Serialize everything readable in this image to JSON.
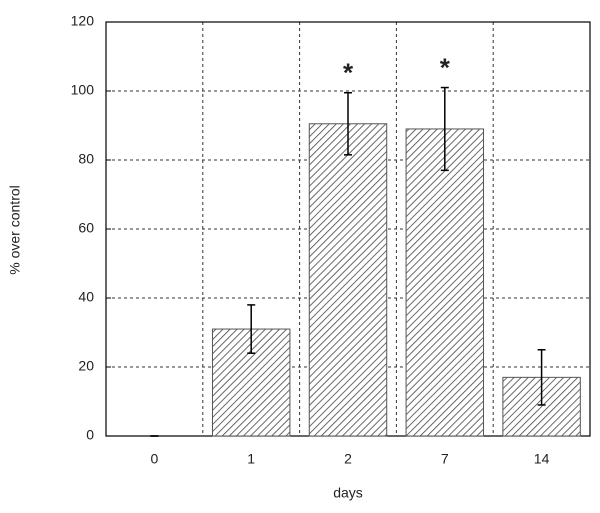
{
  "chart_data": {
    "type": "bar",
    "categories": [
      "0",
      "1",
      "2",
      "7",
      "14"
    ],
    "values": [
      0,
      31,
      90.5,
      89,
      17
    ],
    "errors": [
      0,
      7,
      9,
      12,
      8
    ],
    "color": "#555555",
    "xlabel": "days",
    "ylabel": "% over control",
    "ylim": [
      0,
      120
    ],
    "yticks": [
      0,
      20,
      40,
      60,
      80,
      100,
      120
    ],
    "grid": true,
    "annotations": [
      {
        "text": "*",
        "category": "2"
      },
      {
        "text": "*",
        "category": "7"
      }
    ]
  }
}
